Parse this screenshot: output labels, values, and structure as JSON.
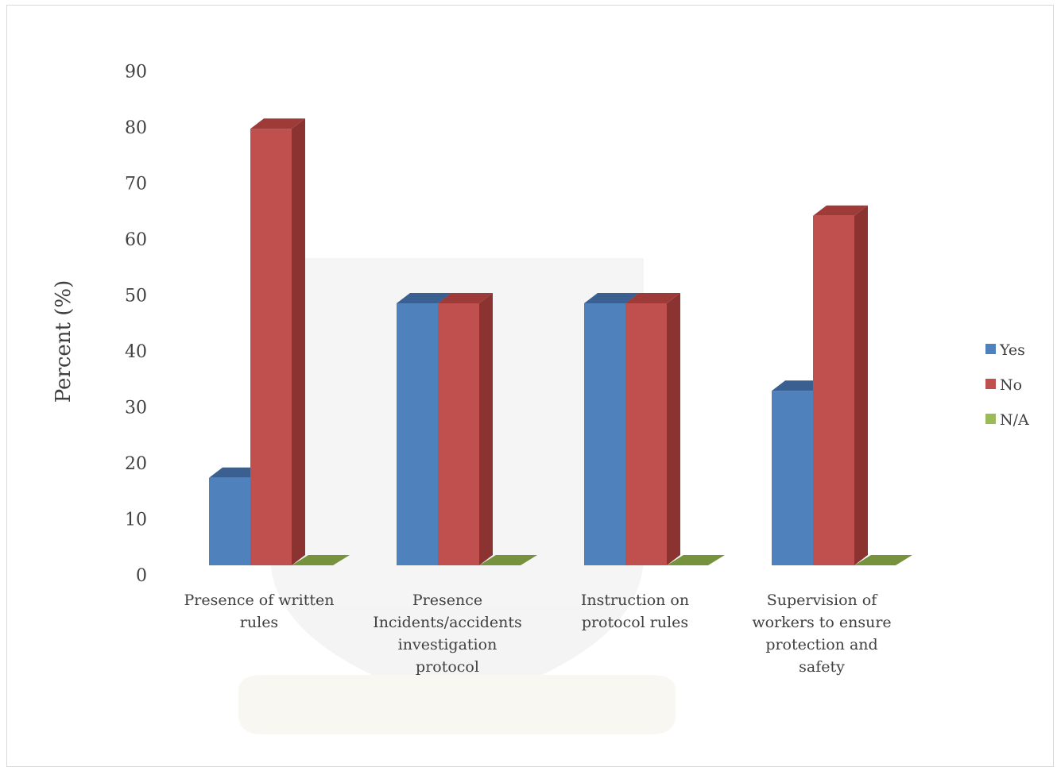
{
  "chart_data": {
    "type": "bar",
    "style": "3d-clustered-column",
    "ylabel": "Percent (%)",
    "ylim": [
      0,
      90
    ],
    "yticks": [
      0,
      10,
      20,
      30,
      40,
      50,
      60,
      70,
      80,
      90
    ],
    "grid": false,
    "legend_position": "right",
    "categories": [
      [
        "Presence of written",
        "rules"
      ],
      [
        "Presence",
        "Incidents/accidents",
        "investigation",
        "protocol"
      ],
      [
        "Instruction on",
        "protocol rules"
      ],
      [
        "Supervision of",
        "workers to ensure",
        "protection and",
        "safety"
      ]
    ],
    "series": [
      {
        "name": "Yes",
        "values": [
          16.7,
          50,
          50,
          33.3
        ],
        "color": "#4f81bd",
        "side": "#3e6796",
        "top": "#3a6091"
      },
      {
        "name": "No",
        "values": [
          83.3,
          50,
          50,
          66.7
        ],
        "color": "#c0504d",
        "side": "#8b3331",
        "top": "#9e3b39"
      },
      {
        "name": "N/A",
        "values": [
          0,
          0,
          0,
          0
        ],
        "color": "#9bbb59",
        "side": "#76923c",
        "top": "#76923c"
      }
    ]
  }
}
